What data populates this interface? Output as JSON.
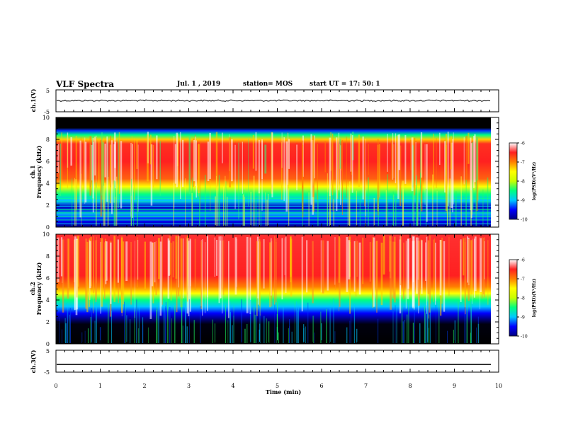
{
  "header": {
    "title": "VLF Spectra",
    "date": "Jul.  1  , 2019",
    "station": "station= MOS",
    "start": "start  UT  =   17: 50: 1"
  },
  "chart_data": [
    {
      "type": "line",
      "ylabel": "ch.1(V)",
      "ylim": [
        -5,
        5
      ],
      "yticks": [
        "5",
        "-5"
      ],
      "xlim": [
        0,
        10
      ],
      "level": 0.1
    },
    {
      "type": "heatmap",
      "ylabel_top": "ch.1",
      "ylabel": "Frequency (kHz)",
      "ylim": [
        0,
        10
      ],
      "yticks": [
        "0",
        "2",
        "4",
        "6",
        "8",
        "10"
      ],
      "xlim": [
        0,
        10
      ],
      "colorbar": {
        "label": "log(PSD)(V²/Hz)",
        "ticks": [
          "-6",
          "-7",
          "-8",
          "-9",
          "-10"
        ],
        "range": [
          -10,
          -6
        ],
        "colors": [
          "#000080",
          "#0000ff",
          "#00c8ff",
          "#00ff80",
          "#c8ff00",
          "#ffff00",
          "#ff8000",
          "#ff2020",
          "#ffffff"
        ]
      }
    },
    {
      "type": "heatmap",
      "ylabel_top": "ch.2",
      "ylabel": "Frequency (kHz)",
      "ylim": [
        0,
        10
      ],
      "yticks": [
        "0",
        "2",
        "4",
        "6",
        "8",
        "10"
      ],
      "xlim": [
        0,
        10
      ],
      "colorbar": {
        "label": "log(PSD)(V²/Hz)",
        "ticks": [
          "-6",
          "-7",
          "-8",
          "-9",
          "-10"
        ],
        "range": [
          -10,
          -6
        ],
        "colors": [
          "#000080",
          "#0000ff",
          "#00c8ff",
          "#00ff80",
          "#c8ff00",
          "#ffff00",
          "#ff8000",
          "#ff2020",
          "#ffffff"
        ]
      }
    },
    {
      "type": "line",
      "ylabel": "ch.3(V)",
      "ylim": [
        -5,
        5
      ],
      "yticks": [
        "5",
        "-5"
      ],
      "xlim": [
        0,
        10
      ],
      "level": -1.5
    }
  ],
  "xaxis": {
    "label": "Time (min)",
    "ticks": [
      "0",
      "1",
      "2",
      "3",
      "4",
      "5",
      "6",
      "7",
      "8",
      "9",
      "10"
    ]
  }
}
